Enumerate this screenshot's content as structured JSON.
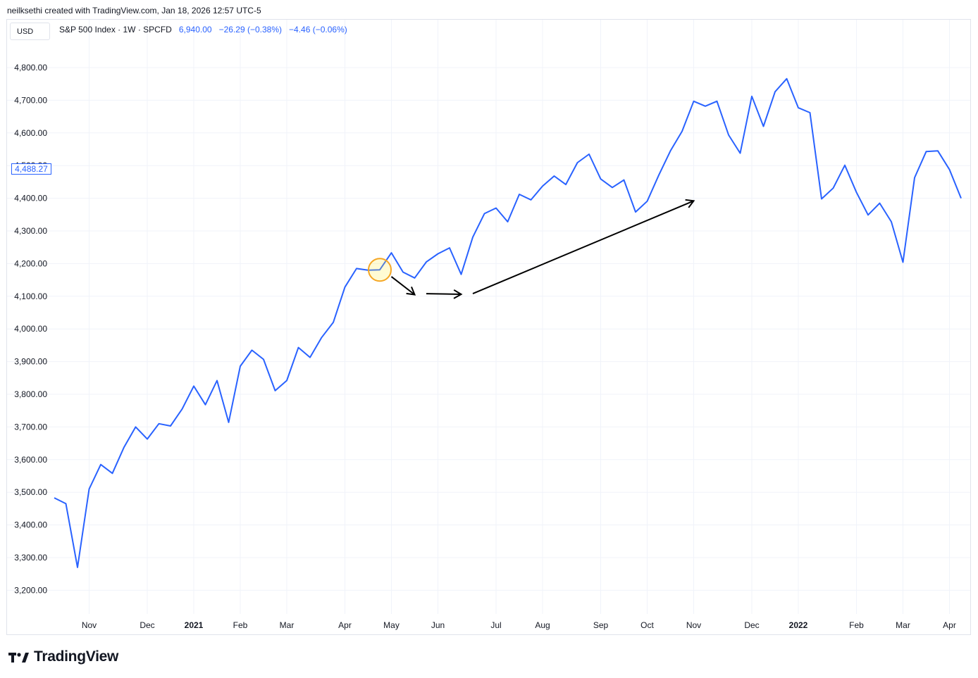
{
  "header": {
    "credit": "neilksethi created with TradingView.com, Jan 18, 2026 12:57 UTC-5"
  },
  "toolbar": {
    "currency": "USD"
  },
  "legend": {
    "symbol": "S&P 500 Index · 1W · SPCFD",
    "last": "6,940.00",
    "change": "−26.29 (−0.38%)",
    "change2": "−4.46 (−0.06%)"
  },
  "price_tag": "4,488.27",
  "footer": {
    "brand": "TradingView"
  },
  "colors": {
    "line": "#2962ff",
    "accent": "#2962ff",
    "marker": "#f5a623",
    "arrow": "#000000"
  },
  "chart_data": {
    "type": "line",
    "series": [
      {
        "values": [
          3483,
          3465,
          3270,
          3510,
          3585,
          3558,
          3638,
          3700,
          3663,
          3710,
          3703,
          3755,
          3825,
          3768,
          3842,
          3714,
          3886,
          3935,
          3907,
          3811,
          3842,
          3943,
          3913,
          3974,
          4020,
          4128,
          4185,
          4180,
          4181,
          4233,
          4174,
          4156,
          4205,
          4230,
          4248,
          4167,
          4281,
          4353,
          4370,
          4328,
          4412,
          4395,
          4437,
          4468,
          4442,
          4509,
          4535,
          4459,
          4433,
          4456,
          4358,
          4391,
          4471,
          4545,
          4605,
          4697,
          4682,
          4697,
          4594,
          4538,
          4712,
          4620,
          4726,
          4766,
          4677,
          4662,
          4398,
          4431,
          4501,
          4418,
          4349,
          4385,
          4328,
          4204,
          4463,
          4543,
          4545,
          4488,
          4400
        ]
      }
    ],
    "x_labels": [
      {
        "label": "Nov",
        "index": 3,
        "bold": false
      },
      {
        "label": "Dec",
        "index": 8,
        "bold": false
      },
      {
        "label": "2021",
        "index": 12,
        "bold": true
      },
      {
        "label": "Feb",
        "index": 16,
        "bold": false
      },
      {
        "label": "Mar",
        "index": 20,
        "bold": false
      },
      {
        "label": "Apr",
        "index": 25,
        "bold": false
      },
      {
        "label": "May",
        "index": 29,
        "bold": false
      },
      {
        "label": "Jun",
        "index": 33,
        "bold": false
      },
      {
        "label": "Jul",
        "index": 38,
        "bold": false
      },
      {
        "label": "Aug",
        "index": 42,
        "bold": false
      },
      {
        "label": "Sep",
        "index": 47,
        "bold": false
      },
      {
        "label": "Oct",
        "index": 51,
        "bold": false
      },
      {
        "label": "Nov",
        "index": 55,
        "bold": false
      },
      {
        "label": "Dec",
        "index": 60,
        "bold": false
      },
      {
        "label": "2022",
        "index": 64,
        "bold": true
      },
      {
        "label": "Feb",
        "index": 69,
        "bold": false
      },
      {
        "label": "Mar",
        "index": 73,
        "bold": false
      },
      {
        "label": "Apr",
        "index": 77,
        "bold": false
      }
    ],
    "y_ticks": [
      {
        "value": 4800,
        "label": "4,800.00"
      },
      {
        "value": 4700,
        "label": "4,700.00"
      },
      {
        "value": 4600,
        "label": "4,600.00"
      },
      {
        "value": 4500,
        "label": "4,500.00"
      },
      {
        "value": 4400,
        "label": "4,400.00"
      },
      {
        "value": 4300,
        "label": "4,300.00"
      },
      {
        "value": 4200,
        "label": "4,200.00"
      },
      {
        "value": 4100,
        "label": "4,100.00"
      },
      {
        "value": 4000,
        "label": "4,000.00"
      },
      {
        "value": 3900,
        "label": "3,900.00"
      },
      {
        "value": 3800,
        "label": "3,800.00"
      },
      {
        "value": 3700,
        "label": "3,700.00"
      },
      {
        "value": 3600,
        "label": "3,600.00"
      },
      {
        "value": 3500,
        "label": "3,500.00"
      },
      {
        "value": 3400,
        "label": "3,400.00"
      },
      {
        "value": 3300,
        "label": "3,300.00"
      },
      {
        "value": 3200,
        "label": "3,200.00"
      }
    ],
    "ylim": [
      3180,
      4840
    ],
    "grid": true,
    "annotations": [
      {
        "kind": "circle",
        "index": 28,
        "value": 4181
      },
      {
        "kind": "arrow",
        "from": [
          29,
          4160
        ],
        "to": [
          31,
          4105
        ]
      },
      {
        "kind": "arrow",
        "from": [
          32,
          4108
        ],
        "to": [
          35,
          4106
        ]
      },
      {
        "kind": "arrow",
        "from": [
          36,
          4108
        ],
        "to": [
          55,
          4392
        ]
      }
    ]
  }
}
